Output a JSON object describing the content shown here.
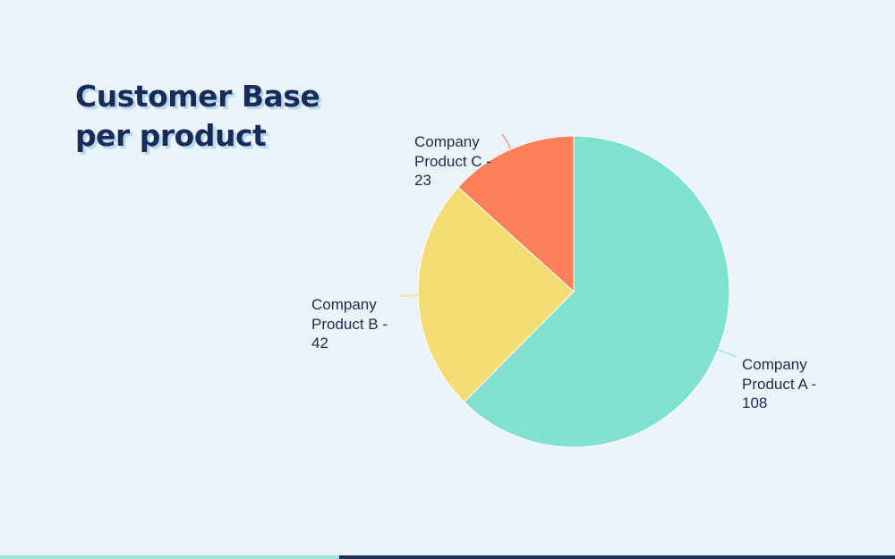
{
  "title": {
    "line1": "Customer Base",
    "line2": "per product"
  },
  "labels": [
    {
      "line1": "Company",
      "line2": "Product A -",
      "line3": "108"
    },
    {
      "line1": "Company",
      "line2": "Product B -",
      "line3": "42"
    },
    {
      "line1": "Company",
      "line2": "Product C -",
      "line3": "23"
    }
  ],
  "colors": {
    "product_a": "#7fe1ce",
    "product_b": "#f5dc72",
    "product_c": "#fd7f5c",
    "title": "#1b2b57",
    "background": "#ebf3f8",
    "bar_left": "#9ce6db",
    "bar_right": "#1c2d56"
  },
  "chart_data": {
    "type": "pie",
    "title": "Customer Base per product",
    "categories": [
      "Company Product A",
      "Company Product B",
      "Company Product C"
    ],
    "values": [
      108,
      42,
      23
    ],
    "colors": [
      "#7fe1ce",
      "#f5dc72",
      "#fd7f5c"
    ],
    "start_angle": "top, clockwise",
    "legend": "none (leader-line labels)"
  }
}
